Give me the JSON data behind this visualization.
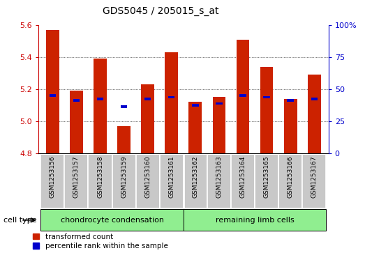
{
  "title": "GDS5045 / 205015_s_at",
  "samples": [
    "GSM1253156",
    "GSM1253157",
    "GSM1253158",
    "GSM1253159",
    "GSM1253160",
    "GSM1253161",
    "GSM1253162",
    "GSM1253163",
    "GSM1253164",
    "GSM1253165",
    "GSM1253166",
    "GSM1253167"
  ],
  "red_values": [
    5.57,
    5.19,
    5.39,
    4.97,
    5.23,
    5.43,
    5.12,
    5.15,
    5.51,
    5.34,
    5.14,
    5.29
  ],
  "blue_values": [
    5.16,
    5.13,
    5.14,
    5.09,
    5.14,
    5.15,
    5.1,
    5.11,
    5.16,
    5.15,
    5.13,
    5.14
  ],
  "ymin": 4.8,
  "ymax": 5.6,
  "yticks": [
    4.8,
    5.0,
    5.2,
    5.4,
    5.6
  ],
  "right_yticks": [
    0,
    25,
    50,
    75,
    100
  ],
  "right_yticklabels": [
    "0",
    "25",
    "50",
    "75",
    "100%"
  ],
  "group1_label": "chondrocyte condensation",
  "group2_label": "remaining limb cells",
  "group_color": "#90EE90",
  "cell_type_label": "cell type",
  "bar_width": 0.55,
  "red_color": "#CC2200",
  "blue_color": "#0000CC",
  "bar_bottom": 4.8,
  "tick_color_left": "#CC0000",
  "tick_color_right": "#0000CC",
  "legend_items": [
    "transformed count",
    "percentile rank within the sample"
  ],
  "gray_box_color": "#C8C8C8"
}
